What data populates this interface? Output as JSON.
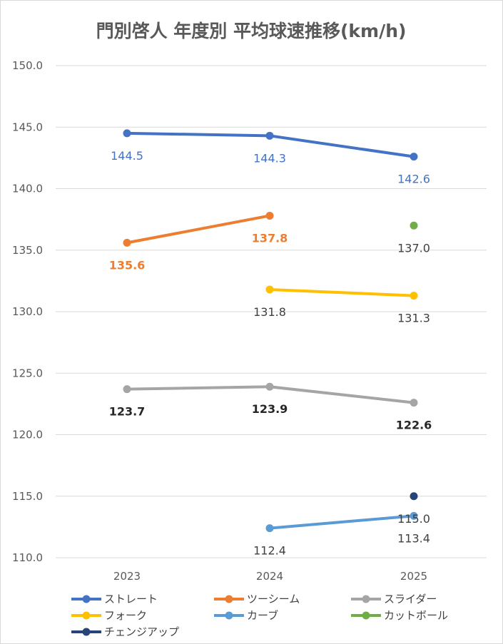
{
  "chart_data": {
    "type": "line",
    "title": "門別啓人 年度別 平均球速推移(km/h)",
    "categories": [
      "2023",
      "2024",
      "2025"
    ],
    "ylim": [
      110,
      150
    ],
    "yticks": [
      "110.0",
      "115.0",
      "120.0",
      "125.0",
      "130.0",
      "135.0",
      "140.0",
      "145.0",
      "150.0"
    ],
    "grid": true,
    "legend_position": "bottom",
    "series": [
      {
        "name": "ストレート",
        "color": "#4472c4",
        "label_color": "#4472c4",
        "bold": false,
        "values": [
          144.5,
          144.3,
          142.6
        ],
        "labels": [
          "144.5",
          "144.3",
          "142.6"
        ]
      },
      {
        "name": "ツーシーム",
        "color": "#ed7d31",
        "label_color": "#ed7d31",
        "bold": true,
        "values": [
          135.6,
          137.8,
          null
        ],
        "labels": [
          "135.6",
          "137.8",
          null
        ]
      },
      {
        "name": "スライダー",
        "color": "#a5a5a5",
        "label_color": "#262626",
        "bold": true,
        "values": [
          123.7,
          123.9,
          122.6
        ],
        "labels": [
          "123.7",
          "123.9",
          "122.6"
        ]
      },
      {
        "name": "フォーク",
        "color": "#ffc000",
        "label_color": "#404040",
        "bold": false,
        "values": [
          null,
          131.8,
          131.3
        ],
        "labels": [
          null,
          "131.8",
          "131.3"
        ]
      },
      {
        "name": "カーブ",
        "color": "#5b9bd5",
        "label_color": "#404040",
        "bold": false,
        "values": [
          null,
          112.4,
          113.4
        ],
        "labels": [
          null,
          "112.4",
          "113.4"
        ]
      },
      {
        "name": "カットボール",
        "color": "#70ad47",
        "label_color": "#404040",
        "bold": false,
        "values": [
          null,
          null,
          137.0
        ],
        "labels": [
          null,
          null,
          "137.0"
        ]
      },
      {
        "name": "チェンジアップ",
        "color": "#264478",
        "label_color": "#404040",
        "bold": false,
        "values": [
          null,
          null,
          115.0
        ],
        "labels": [
          null,
          null,
          "115.0"
        ]
      }
    ]
  }
}
